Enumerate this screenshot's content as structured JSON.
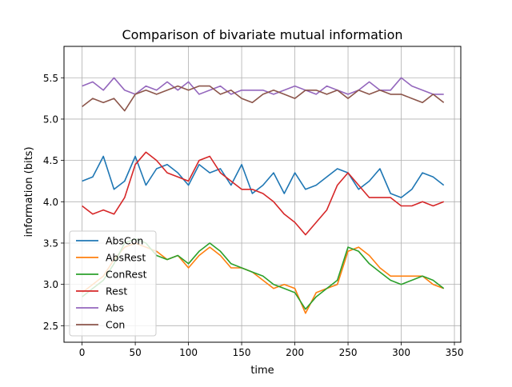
{
  "chart_data": {
    "type": "line",
    "title": "Comparison of bivariate mutual information",
    "xlabel": "time",
    "ylabel": "information (bits)",
    "xlim": [
      -17,
      356
    ],
    "ylim": [
      2.3,
      5.88
    ],
    "xticks": [
      0,
      50,
      100,
      150,
      200,
      250,
      300,
      350
    ],
    "yticks": [
      2.5,
      3.0,
      3.5,
      4.0,
      4.5,
      5.0,
      5.5
    ],
    "grid": true,
    "legend": "lower-left",
    "x": [
      0,
      10,
      20,
      30,
      40,
      50,
      60,
      70,
      80,
      90,
      100,
      110,
      120,
      130,
      140,
      150,
      160,
      170,
      180,
      190,
      200,
      210,
      220,
      230,
      240,
      250,
      260,
      270,
      280,
      290,
      300,
      310,
      320,
      330,
      340
    ],
    "series": [
      {
        "name": "AbsCon",
        "color": "#1f77b4",
        "values": [
          4.25,
          4.3,
          4.55,
          4.15,
          4.25,
          4.55,
          4.2,
          4.4,
          4.45,
          4.35,
          4.2,
          4.45,
          4.35,
          4.4,
          4.2,
          4.45,
          4.1,
          4.2,
          4.35,
          4.1,
          4.35,
          4.15,
          4.2,
          4.3,
          4.4,
          4.35,
          4.15,
          4.25,
          4.4,
          4.1,
          4.05,
          4.15,
          4.35,
          4.3,
          4.2
        ]
      },
      {
        "name": "AbsRest",
        "color": "#ff7f0e",
        "values": [
          2.9,
          3.0,
          3.1,
          3.3,
          3.45,
          3.5,
          3.45,
          3.4,
          3.3,
          3.35,
          3.2,
          3.35,
          3.45,
          3.35,
          3.2,
          3.2,
          3.15,
          3.05,
          2.95,
          3.0,
          2.95,
          2.65,
          2.9,
          2.95,
          3.0,
          3.4,
          3.45,
          3.35,
          3.2,
          3.1,
          3.1,
          3.1,
          3.1,
          3.0,
          2.95
        ]
      },
      {
        "name": "ConRest",
        "color": "#2ca02c",
        "values": [
          2.85,
          2.95,
          3.05,
          3.25,
          3.5,
          3.55,
          3.5,
          3.35,
          3.3,
          3.35,
          3.25,
          3.4,
          3.5,
          3.4,
          3.25,
          3.2,
          3.15,
          3.1,
          3.0,
          2.95,
          2.9,
          2.7,
          2.85,
          2.95,
          3.05,
          3.45,
          3.4,
          3.25,
          3.15,
          3.05,
          3.0,
          3.05,
          3.1,
          3.05,
          2.95
        ]
      },
      {
        "name": "Rest",
        "color": "#d62728",
        "values": [
          3.95,
          3.85,
          3.9,
          3.85,
          4.05,
          4.45,
          4.6,
          4.5,
          4.35,
          4.3,
          4.25,
          4.5,
          4.55,
          4.35,
          4.25,
          4.15,
          4.15,
          4.1,
          4.0,
          3.85,
          3.75,
          3.6,
          3.75,
          3.9,
          4.2,
          4.35,
          4.2,
          4.05,
          4.05,
          4.05,
          3.95,
          3.95,
          4.0,
          3.95,
          4.0
        ]
      },
      {
        "name": "Abs",
        "color": "#9467bd",
        "values": [
          5.4,
          5.45,
          5.35,
          5.5,
          5.35,
          5.3,
          5.4,
          5.35,
          5.45,
          5.35,
          5.45,
          5.3,
          5.35,
          5.4,
          5.3,
          5.35,
          5.35,
          5.35,
          5.3,
          5.35,
          5.4,
          5.35,
          5.3,
          5.4,
          5.35,
          5.3,
          5.35,
          5.45,
          5.35,
          5.35,
          5.5,
          5.4,
          5.35,
          5.3,
          5.3
        ]
      },
      {
        "name": "Con",
        "color": "#8c564b",
        "values": [
          5.15,
          5.25,
          5.2,
          5.25,
          5.1,
          5.3,
          5.35,
          5.3,
          5.35,
          5.4,
          5.35,
          5.4,
          5.4,
          5.3,
          5.35,
          5.25,
          5.2,
          5.3,
          5.35,
          5.3,
          5.25,
          5.35,
          5.35,
          5.3,
          5.35,
          5.25,
          5.35,
          5.3,
          5.35,
          5.3,
          5.3,
          5.25,
          5.2,
          5.3,
          5.2
        ]
      }
    ]
  }
}
